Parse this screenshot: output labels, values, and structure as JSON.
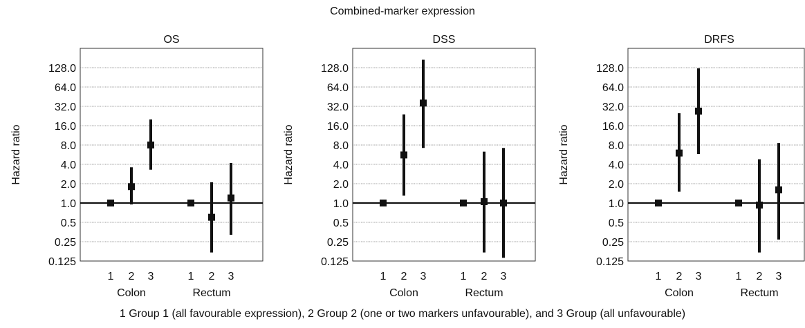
{
  "figure": {
    "suptitle": "Combined-marker expression",
    "footnote": "1 Group 1 (all favourable expression), 2 Group 2 (one or two markers unfavourable), and 3 Group (all unfavourable)"
  },
  "chart_data": [
    {
      "type": "scatter",
      "title": "OS",
      "ylabel": "Hazard ratio",
      "yscale": "log2",
      "ylim": [
        0.125,
        256
      ],
      "yticks": [
        "128.0",
        "64.0",
        "32.0",
        "16.0",
        "8.0",
        "4.0",
        "2.0",
        "1.0",
        "0.5",
        "0.25",
        "0.125"
      ],
      "reference_line": 1.0,
      "grid": true,
      "groups": [
        "Colon",
        "Rectum"
      ],
      "categories": [
        "1",
        "2",
        "3"
      ],
      "points": [
        {
          "group": "Colon",
          "category": "1",
          "hr": 1.0,
          "lo": 1.0,
          "hi": 1.0
        },
        {
          "group": "Colon",
          "category": "2",
          "hr": 1.8,
          "lo": 0.95,
          "hi": 3.6
        },
        {
          "group": "Colon",
          "category": "3",
          "hr": 8.0,
          "lo": 3.3,
          "hi": 20
        },
        {
          "group": "Rectum",
          "category": "1",
          "hr": 1.0,
          "lo": 1.0,
          "hi": 1.0
        },
        {
          "group": "Rectum",
          "category": "2",
          "hr": 0.6,
          "lo": 0.17,
          "hi": 2.1
        },
        {
          "group": "Rectum",
          "category": "3",
          "hr": 1.2,
          "lo": 0.32,
          "hi": 4.2
        }
      ]
    },
    {
      "type": "scatter",
      "title": "DSS",
      "ylabel": "Hazard ratio",
      "yscale": "log2",
      "ylim": [
        0.125,
        256
      ],
      "yticks": [
        "128.0",
        "64.0",
        "32.0",
        "16.0",
        "8.0",
        "4.0",
        "2.0",
        "1.0",
        "0.5",
        "0.25",
        "0.125"
      ],
      "reference_line": 1.0,
      "grid": true,
      "groups": [
        "Colon",
        "Rectum"
      ],
      "categories": [
        "1",
        "2",
        "3"
      ],
      "points": [
        {
          "group": "Colon",
          "category": "1",
          "hr": 1.0,
          "lo": 1.0,
          "hi": 1.0
        },
        {
          "group": "Colon",
          "category": "2",
          "hr": 5.6,
          "lo": 1.3,
          "hi": 24
        },
        {
          "group": "Colon",
          "category": "3",
          "hr": 36,
          "lo": 7.2,
          "hi": 170
        },
        {
          "group": "Rectum",
          "category": "1",
          "hr": 1.0,
          "lo": 1.0,
          "hi": 1.0
        },
        {
          "group": "Rectum",
          "category": "2",
          "hr": 1.05,
          "lo": 0.17,
          "hi": 6.3
        },
        {
          "group": "Rectum",
          "category": "3",
          "hr": 1.0,
          "lo": 0.14,
          "hi": 7.2
        }
      ]
    },
    {
      "type": "scatter",
      "title": "DRFS",
      "ylabel": "Hazard ratio",
      "yscale": "log2",
      "ylim": [
        0.125,
        256
      ],
      "yticks": [
        "128.0",
        "64.0",
        "32.0",
        "16.0",
        "8.0",
        "4.0",
        "2.0",
        "1.0",
        "0.5",
        "0.25",
        "0.125"
      ],
      "reference_line": 1.0,
      "grid": true,
      "groups": [
        "Colon",
        "Rectum"
      ],
      "categories": [
        "1",
        "2",
        "3"
      ],
      "points": [
        {
          "group": "Colon",
          "category": "1",
          "hr": 1.0,
          "lo": 1.0,
          "hi": 1.0
        },
        {
          "group": "Colon",
          "category": "2",
          "hr": 6.0,
          "lo": 1.5,
          "hi": 25
        },
        {
          "group": "Colon",
          "category": "3",
          "hr": 27,
          "lo": 5.8,
          "hi": 125
        },
        {
          "group": "Rectum",
          "category": "1",
          "hr": 1.0,
          "lo": 1.0,
          "hi": 1.0
        },
        {
          "group": "Rectum",
          "category": "2",
          "hr": 0.93,
          "lo": 0.17,
          "hi": 4.8
        },
        {
          "group": "Rectum",
          "category": "3",
          "hr": 1.6,
          "lo": 0.27,
          "hi": 8.6
        }
      ]
    }
  ]
}
